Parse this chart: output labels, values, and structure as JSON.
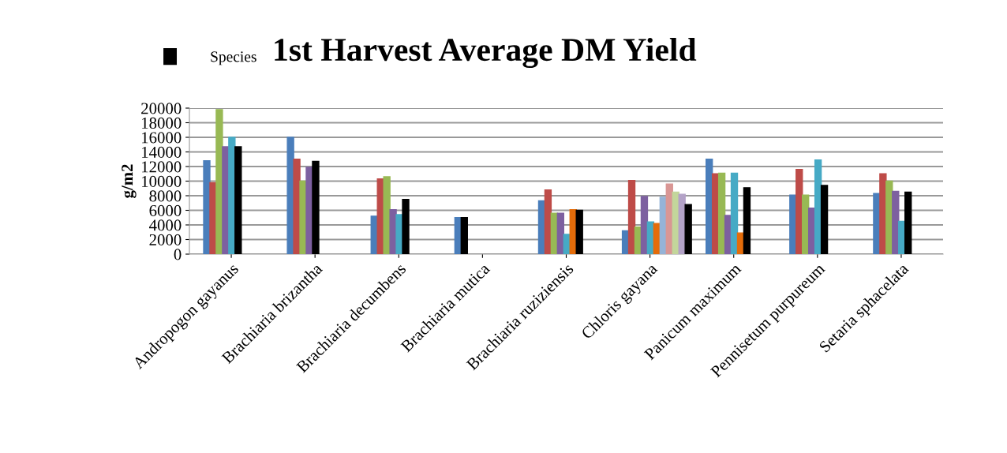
{
  "chart_data": {
    "type": "bar",
    "title": "1st Harvest Average DM Yield",
    "ylabel": "g/m2",
    "categories": [
      "Andropogon gayanus",
      "Brachiaria brizantha",
      "Brachiaria decumbens",
      "Brachiaria mutica",
      "Brachiaria ruziziensis",
      "Chloris gayana",
      "Panicum maximum",
      "Pennisetum purpureum",
      "Setaria sphacelata"
    ],
    "series": [
      {
        "color": "#4a7ebb",
        "values": [
          12800,
          16000,
          5200,
          5000,
          7300,
          3200,
          13000,
          8100,
          8300
        ]
      },
      {
        "color": "#be4b48",
        "values": [
          9800,
          13000,
          10300,
          null,
          8800,
          10100,
          11000,
          11600,
          11000
        ]
      },
      {
        "color": "#98b954",
        "values": [
          19800,
          10000,
          10600,
          null,
          5600,
          3700,
          11100,
          8100,
          10000
        ]
      },
      {
        "color": "#7d60a0",
        "values": [
          14700,
          11900,
          6100,
          null,
          5600,
          7900,
          5300,
          6300,
          8600
        ]
      },
      {
        "color": "#46aac5",
        "values": [
          16000,
          null,
          5400,
          null,
          2700,
          4400,
          11100,
          12900,
          4500
        ]
      },
      {
        "color": "#e46c0a",
        "values": [
          null,
          null,
          null,
          null,
          6100,
          4200,
          2900,
          null,
          null
        ]
      },
      {
        "color": "#95b3d7",
        "values": [
          null,
          null,
          null,
          null,
          null,
          7800,
          null,
          null,
          null
        ]
      },
      {
        "color": "#d99694",
        "values": [
          null,
          null,
          null,
          null,
          null,
          9600,
          null,
          null,
          null
        ]
      },
      {
        "color": "#c3d69b",
        "values": [
          null,
          null,
          null,
          null,
          null,
          8500,
          null,
          null,
          null
        ]
      },
      {
        "color": "#b3a2c7",
        "values": [
          null,
          null,
          null,
          null,
          null,
          8200,
          null,
          null,
          null
        ]
      },
      {
        "name": "Species",
        "color": "#000000",
        "values": [
          14700,
          12700,
          7500,
          5000,
          6000,
          6800,
          9100,
          9400,
          8500
        ]
      }
    ],
    "ylim": [
      0,
      20000
    ],
    "yticks": [
      0,
      2000,
      4000,
      6000,
      8000,
      10000,
      12000,
      14000,
      16000,
      18000,
      20000
    ],
    "grid": "y",
    "legend": "top left"
  }
}
